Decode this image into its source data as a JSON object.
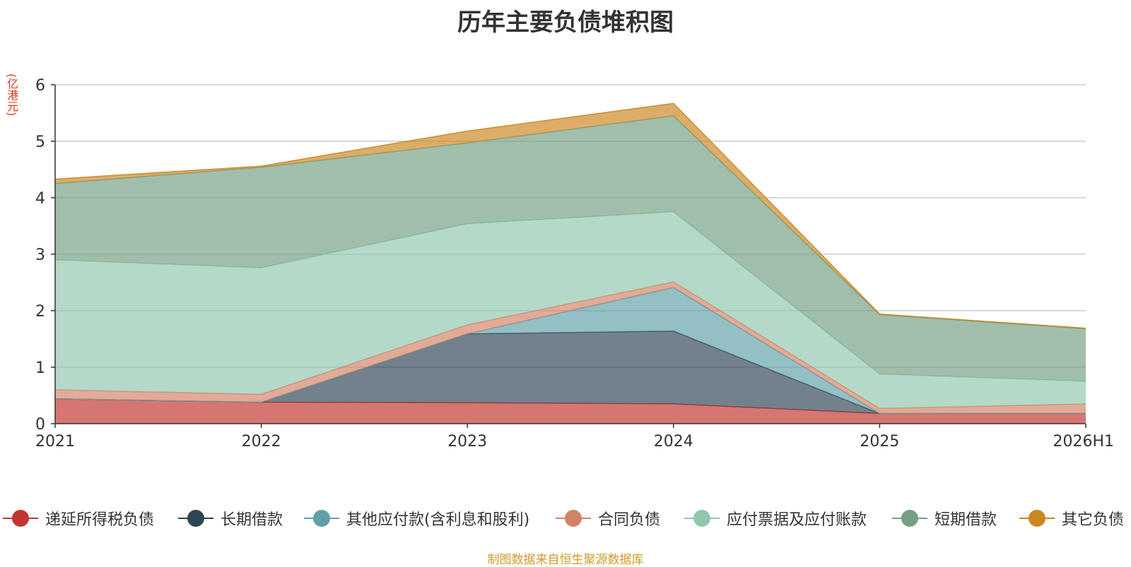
{
  "unit_label": "(亿港元)",
  "source_note": "制图数据来自恒生聚源数据库",
  "chart_data": {
    "type": "area",
    "stacked": true,
    "title": "历年主要负债堆积图",
    "categories": [
      "2021",
      "2022",
      "2023",
      "2024",
      "2025",
      "2026H1"
    ],
    "ylim": [
      0,
      6
    ],
    "yticks": [
      0,
      1,
      2,
      3,
      4,
      5,
      6
    ],
    "grid": true,
    "legend_position": "bottom",
    "series": [
      {
        "name": "递延所得税负债",
        "color": "#c23531",
        "values": [
          0.44,
          0.38,
          0.37,
          0.35,
          0.18,
          0.18
        ]
      },
      {
        "name": "长期借款",
        "color": "#2f4554",
        "values": [
          0.0,
          0.0,
          1.22,
          1.29,
          0.0,
          0.0
        ]
      },
      {
        "name": "其他应付款(含利息和股利)",
        "color": "#61a0a8",
        "values": [
          0.0,
          0.0,
          0.0,
          0.77,
          0.0,
          0.0
        ]
      },
      {
        "name": "合同负债",
        "color": "#d48265",
        "values": [
          0.16,
          0.14,
          0.16,
          0.1,
          0.09,
          0.17
        ]
      },
      {
        "name": "应付票据及应付账款",
        "color": "#91c7ae",
        "values": [
          2.3,
          2.24,
          1.79,
          1.24,
          0.61,
          0.4
        ]
      },
      {
        "name": "短期借款",
        "color": "#749f83",
        "values": [
          1.35,
          1.78,
          1.43,
          1.7,
          1.05,
          0.93
        ]
      },
      {
        "name": "其它负债",
        "color": "#ca8622",
        "values": [
          0.08,
          0.02,
          0.21,
          0.22,
          0.01,
          0.01
        ]
      }
    ]
  }
}
